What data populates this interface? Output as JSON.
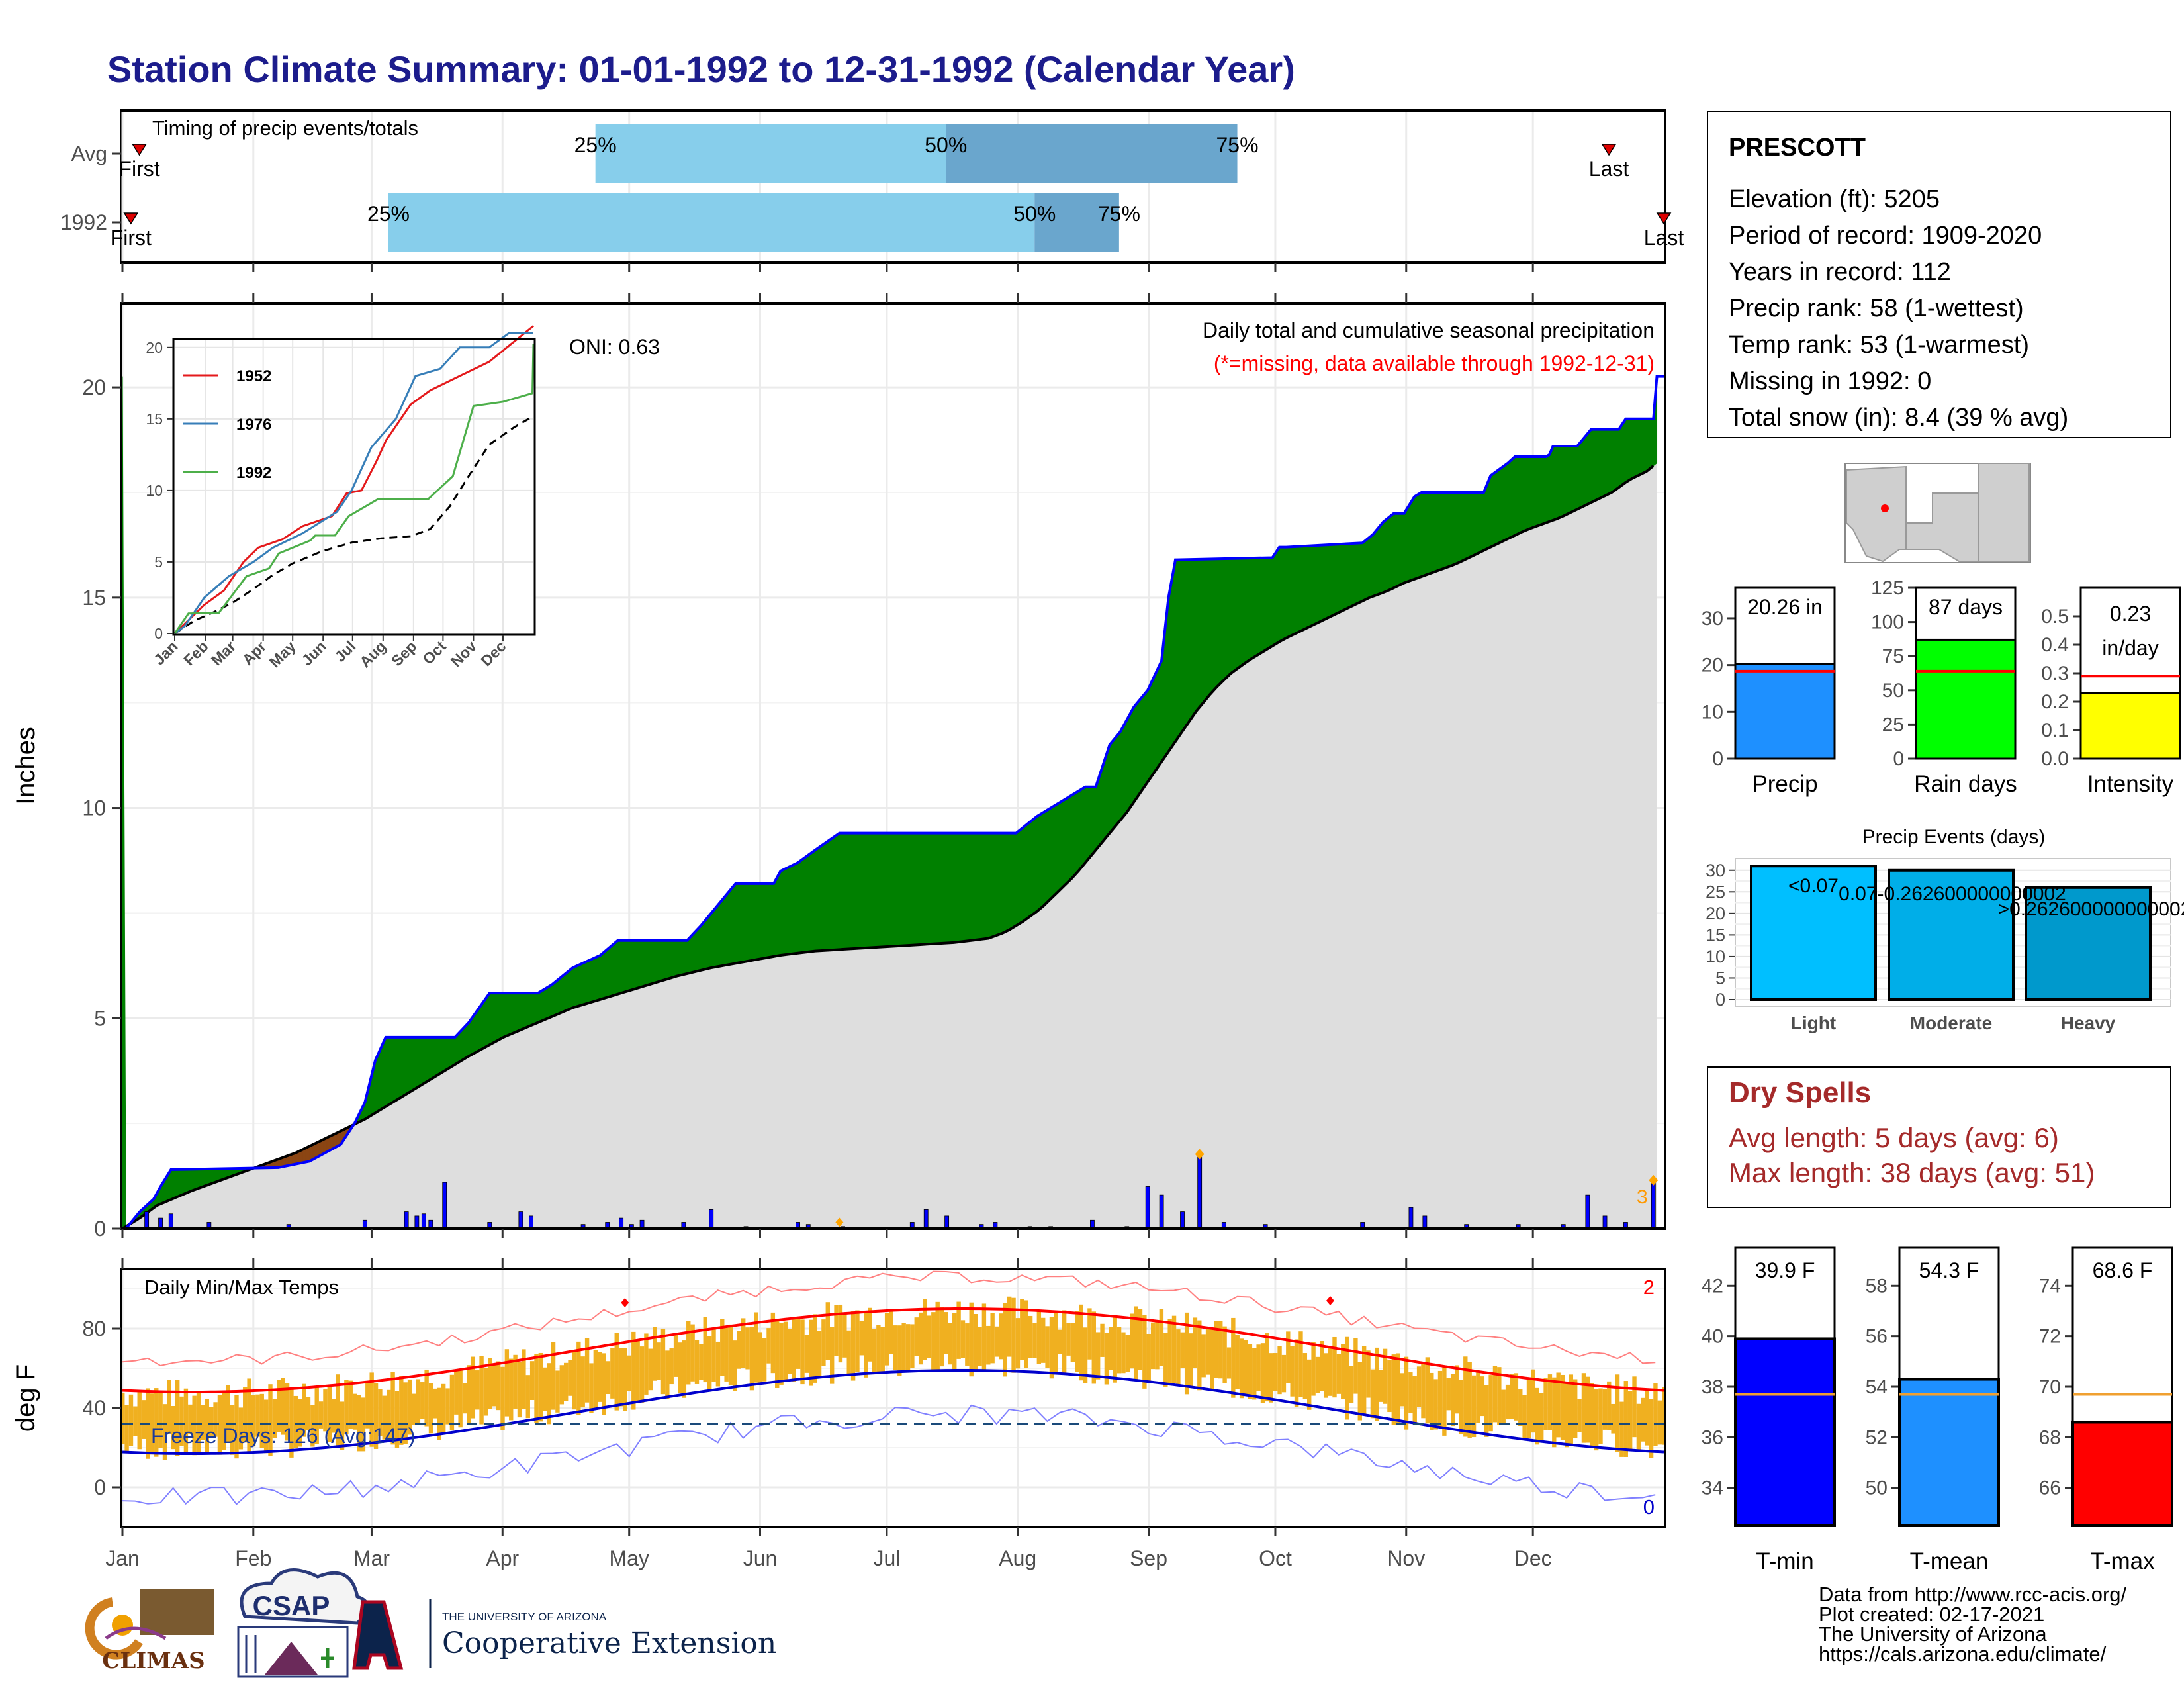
{
  "title": "Station Climate Summary: 01-01-1992 to 12-31-1992 (Calendar Year)",
  "timing_panel": {
    "label": "Timing of precip events/totals",
    "rows": [
      {
        "row_label": "Avg",
        "first_label": "First",
        "last_label": "Last",
        "p25_label": "25%",
        "p50_label": "50%",
        "p75_label": "75%",
        "first_day": 5,
        "p25_day": 113,
        "p50_day": 196,
        "p75_day": 265,
        "last_day": 353
      },
      {
        "row_label": "1992",
        "first_label": "First",
        "last_label": "Last",
        "p25_label": "25%",
        "p50_label": "50%",
        "p75_label": "75%",
        "first_day": 3,
        "p25_day": 64,
        "p50_day": 217,
        "p75_day": 237,
        "last_day": 366
      }
    ],
    "colors": {
      "light": "#87ceeb",
      "dark": "#6aa6cd",
      "marker": "#dd0000"
    }
  },
  "months": [
    "Jan",
    "Feb",
    "Mar",
    "Apr",
    "May",
    "Jun",
    "Jul",
    "Aug",
    "Sep",
    "Oct",
    "Nov",
    "Dec"
  ],
  "precip_panel": {
    "ylabel": "Inches",
    "yticks": [
      "0",
      "5",
      "10",
      "15",
      "20"
    ],
    "ylim": [
      0,
      22
    ],
    "oni": "ONI: 0.63",
    "caption": "Daily total and cumulative seasonal precipitation",
    "caption2": "(*=missing, data available through 1992-12-31)",
    "corner_num": "3",
    "colors": {
      "obs_line": "#0000ff",
      "above": "#008000",
      "below": "#8b4513",
      "avg_fill": "#dedede",
      "daily": "#0000ff"
    },
    "cumulative_1992": [
      [
        1,
        0
      ],
      [
        5,
        0.4
      ],
      [
        9,
        0.7
      ],
      [
        11,
        1.0
      ],
      [
        14,
        1.4
      ],
      [
        45,
        1.45
      ],
      [
        54,
        1.6
      ],
      [
        63,
        2.0
      ],
      [
        67,
        2.5
      ],
      [
        70,
        3.0
      ],
      [
        73,
        4.0
      ],
      [
        76,
        4.55
      ],
      [
        96,
        4.55
      ],
      [
        100,
        4.9
      ],
      [
        106,
        5.6
      ],
      [
        120,
        5.6
      ],
      [
        124,
        5.8
      ],
      [
        130,
        6.2
      ],
      [
        138,
        6.5
      ],
      [
        143,
        6.85
      ],
      [
        163,
        6.85
      ],
      [
        167,
        7.2
      ],
      [
        172,
        7.7
      ],
      [
        177,
        8.2
      ],
      [
        188,
        8.2
      ],
      [
        190,
        8.5
      ],
      [
        195,
        8.7
      ],
      [
        200,
        9.0
      ],
      [
        207,
        9.4
      ],
      [
        258,
        9.4
      ],
      [
        264,
        9.8
      ],
      [
        272,
        10.2
      ],
      [
        278,
        10.5
      ],
      [
        281,
        10.5
      ],
      [
        283,
        11.0
      ],
      [
        285,
        11.5
      ],
      [
        288,
        11.8
      ],
      [
        292,
        12.4
      ],
      [
        296,
        12.8
      ],
      [
        300,
        13.5
      ],
      [
        302,
        15.0
      ],
      [
        304,
        15.9
      ],
      [
        332,
        15.95
      ],
      [
        334,
        16.2
      ],
      [
        336,
        16.2
      ],
      [
        358,
        16.3
      ],
      [
        361,
        16.5
      ],
      [
        364,
        16.8
      ],
      [
        367,
        17.0
      ],
      [
        370,
        17.0
      ],
      [
        373,
        17.4
      ],
      [
        375,
        17.5
      ],
      [
        393,
        17.5
      ],
      [
        395,
        17.9
      ],
      [
        400,
        18.2
      ],
      [
        402,
        18.35
      ],
      [
        411,
        18.35
      ],
      [
        412,
        18.4
      ],
      [
        413,
        18.6
      ],
      [
        420,
        18.6
      ],
      [
        422,
        18.8
      ],
      [
        424,
        19.0
      ],
      [
        432,
        19.0
      ],
      [
        434,
        19.25
      ],
      [
        442,
        19.25
      ],
      [
        443,
        20.26
      ],
      [
        445,
        20.26
      ]
    ],
    "cumulative_avg": [
      [
        0,
        0
      ],
      [
        5,
        0.25
      ],
      [
        10,
        0.55
      ],
      [
        20,
        0.9
      ],
      [
        30,
        1.2
      ],
      [
        40,
        1.5
      ],
      [
        50,
        1.8
      ],
      [
        60,
        2.2
      ],
      [
        70,
        2.6
      ],
      [
        80,
        3.1
      ],
      [
        90,
        3.6
      ],
      [
        100,
        4.1
      ],
      [
        110,
        4.55
      ],
      [
        120,
        4.9
      ],
      [
        130,
        5.25
      ],
      [
        140,
        5.5
      ],
      [
        150,
        5.75
      ],
      [
        160,
        6.0
      ],
      [
        170,
        6.2
      ],
      [
        180,
        6.35
      ],
      [
        190,
        6.5
      ],
      [
        200,
        6.6
      ],
      [
        210,
        6.65
      ],
      [
        220,
        6.7
      ],
      [
        230,
        6.75
      ],
      [
        240,
        6.8
      ],
      [
        250,
        6.9
      ],
      [
        255,
        7.05
      ],
      [
        260,
        7.3
      ],
      [
        265,
        7.6
      ],
      [
        270,
        8.0
      ],
      [
        275,
        8.4
      ],
      [
        280,
        8.9
      ],
      [
        285,
        9.4
      ],
      [
        290,
        9.9
      ],
      [
        295,
        10.5
      ],
      [
        300,
        11.1
      ],
      [
        305,
        11.7
      ],
      [
        310,
        12.3
      ],
      [
        315,
        12.8
      ],
      [
        320,
        13.2
      ],
      [
        325,
        13.5
      ],
      [
        330,
        13.75
      ],
      [
        335,
        14.0
      ],
      [
        340,
        14.2
      ],
      [
        345,
        14.4
      ],
      [
        350,
        14.6
      ],
      [
        355,
        14.8
      ],
      [
        360,
        15.0
      ],
      [
        365,
        15.15
      ],
      [
        370,
        15.35
      ],
      [
        375,
        15.5
      ],
      [
        380,
        15.65
      ],
      [
        385,
        15.8
      ],
      [
        390,
        16.0
      ],
      [
        395,
        16.2
      ],
      [
        400,
        16.4
      ],
      [
        405,
        16.6
      ],
      [
        410,
        16.75
      ],
      [
        415,
        16.9
      ],
      [
        420,
        17.1
      ],
      [
        425,
        17.3
      ],
      [
        430,
        17.5
      ],
      [
        435,
        17.8
      ],
      [
        440,
        18.0
      ],
      [
        443,
        18.2
      ]
    ],
    "daily": [
      [
        7,
        0.4
      ],
      [
        11,
        0.25
      ],
      [
        14,
        0.35
      ],
      [
        25,
        0.15
      ],
      [
        48,
        0.1
      ],
      [
        70,
        0.2
      ],
      [
        82,
        0.4
      ],
      [
        85,
        0.3
      ],
      [
        87,
        0.35
      ],
      [
        89,
        0.2
      ],
      [
        93,
        1.1
      ],
      [
        106,
        0.15
      ],
      [
        115,
        0.4
      ],
      [
        118,
        0.3
      ],
      [
        133,
        0.1
      ],
      [
        140,
        0.15
      ],
      [
        144,
        0.25
      ],
      [
        147,
        0.1
      ],
      [
        150,
        0.2
      ],
      [
        162,
        0.15
      ],
      [
        170,
        0.45
      ],
      [
        180,
        0.05
      ],
      [
        195,
        0.15
      ],
      [
        198,
        0.1
      ],
      [
        208,
        0.05
      ],
      [
        228,
        0.15
      ],
      [
        232,
        0.45
      ],
      [
        238,
        0.3
      ],
      [
        248,
        0.1
      ],
      [
        252,
        0.15
      ],
      [
        262,
        0.05
      ],
      [
        268,
        0.05
      ],
      [
        280,
        0.2
      ],
      [
        290,
        0.05
      ],
      [
        296,
        1.0
      ],
      [
        300,
        0.8
      ],
      [
        306,
        0.4
      ],
      [
        311,
        1.7
      ],
      [
        318,
        0.15
      ],
      [
        330,
        0.1
      ],
      [
        358,
        0.15
      ],
      [
        372,
        0.5
      ],
      [
        376,
        0.3
      ],
      [
        388,
        0.1
      ],
      [
        403,
        0.1
      ],
      [
        416,
        0.1
      ],
      [
        423,
        0.8
      ],
      [
        428,
        0.3
      ],
      [
        434,
        0.15
      ],
      [
        442,
        1.1
      ]
    ]
  },
  "inset_panel": {
    "yticks": [
      "0",
      "5",
      "10",
      "15",
      "20"
    ],
    "months": [
      "Jan",
      "Feb",
      "Mar",
      "Apr",
      "May",
      "Jun",
      "Jul",
      "Aug",
      "Sep",
      "Oct",
      "Nov",
      "Dec"
    ],
    "series": [
      {
        "name": "1952",
        "color": "#e41a1c",
        "values": [
          [
            0,
            0
          ],
          [
            15,
            1
          ],
          [
            30,
            2
          ],
          [
            50,
            3
          ],
          [
            70,
            5
          ],
          [
            85,
            6
          ],
          [
            110,
            6.6
          ],
          [
            130,
            7.5
          ],
          [
            160,
            8.2
          ],
          [
            175,
            9.8
          ],
          [
            190,
            10
          ],
          [
            205,
            12
          ],
          [
            215,
            13.5
          ],
          [
            240,
            16
          ],
          [
            260,
            17
          ],
          [
            290,
            18
          ],
          [
            320,
            19
          ],
          [
            365,
            21.5
          ]
        ]
      },
      {
        "name": "1976",
        "color": "#377eb8",
        "values": [
          [
            0,
            0
          ],
          [
            10,
            0.5
          ],
          [
            30,
            2.5
          ],
          [
            55,
            4
          ],
          [
            80,
            5
          ],
          [
            100,
            6
          ],
          [
            130,
            7
          ],
          [
            165,
            8.5
          ],
          [
            180,
            10
          ],
          [
            200,
            13
          ],
          [
            225,
            15
          ],
          [
            245,
            18
          ],
          [
            270,
            18.5
          ],
          [
            290,
            20
          ],
          [
            320,
            20
          ],
          [
            340,
            21
          ],
          [
            365,
            21
          ]
        ]
      },
      {
        "name": "1992",
        "color": "#4daf4a",
        "values": [
          [
            0,
            0
          ],
          [
            14,
            1.4
          ],
          [
            45,
            1.45
          ],
          [
            73,
            4
          ],
          [
            96,
            4.55
          ],
          [
            106,
            5.6
          ],
          [
            138,
            6.5
          ],
          [
            143,
            6.85
          ],
          [
            163,
            6.85
          ],
          [
            177,
            8.2
          ],
          [
            207,
            9.4
          ],
          [
            258,
            9.4
          ],
          [
            283,
            11
          ],
          [
            304,
            15.9
          ],
          [
            334,
            16.2
          ],
          [
            364,
            16.8
          ],
          [
            365,
            20.26
          ]
        ]
      }
    ],
    "avg": [
      [
        0,
        0
      ],
      [
        20,
        0.9
      ],
      [
        40,
        1.5
      ],
      [
        60,
        2.2
      ],
      [
        80,
        3.1
      ],
      [
        100,
        4.1
      ],
      [
        120,
        4.9
      ],
      [
        150,
        5.75
      ],
      [
        180,
        6.35
      ],
      [
        210,
        6.65
      ],
      [
        240,
        6.8
      ],
      [
        260,
        7.3
      ],
      [
        280,
        8.9
      ],
      [
        300,
        11.1
      ],
      [
        320,
        13.2
      ],
      [
        345,
        14.4
      ],
      [
        365,
        15.2
      ]
    ]
  },
  "temp_panel": {
    "ylabel": "deg F",
    "label": "Daily Min/Max Temps",
    "freeze_label": "Freeze Days: 126 (Avg:147)",
    "count_high": "2",
    "count_low": "0",
    "yticks": [
      "0",
      "40",
      "80"
    ],
    "ylim": [
      -20,
      110
    ],
    "freeze_line": 32,
    "colors": {
      "bar": "#f0b020",
      "max_norm": "#ff0000",
      "min_norm": "#0000cc",
      "extreme_max": "#ff8080",
      "extreme_min": "#8080ff",
      "freeze": "#1a4a7a"
    }
  },
  "station_box": {
    "name": "PRESCOTT",
    "lines": [
      "Elevation (ft): 5205",
      "Period of record: 1909-2020",
      "Years in record: 112",
      "Precip rank: 58 (1-wettest)",
      "Temp rank: 53 (1-warmest)",
      "Missing in 1992: 0",
      "Total snow (in): 8.4 (39 % avg)"
    ]
  },
  "precip_stats": [
    {
      "label": "Precip",
      "value_label": "20.26 in",
      "value": 20.26,
      "avg": 18.7,
      "max": 36.5,
      "yticks": [
        "0",
        "10",
        "20",
        "30"
      ],
      "tickvals": [
        0,
        10,
        20,
        30
      ],
      "color": "#1e90ff"
    },
    {
      "label": "Rain days",
      "value_label": "87 days",
      "value": 87,
      "avg": 64,
      "max": 125,
      "yticks": [
        "0",
        "25",
        "50",
        "75",
        "100",
        "125"
      ],
      "tickvals": [
        0,
        25,
        50,
        75,
        100,
        125
      ],
      "color": "#00ff00"
    },
    {
      "label": "Intensity",
      "value_label1": "0.23",
      "value_label2": "in/day",
      "value": 0.23,
      "avg": 0.29,
      "max": 0.6,
      "yticks": [
        "0.0",
        "0.1",
        "0.2",
        "0.3",
        "0.4",
        "0.5"
      ],
      "tickvals": [
        0,
        0.1,
        0.2,
        0.3,
        0.4,
        0.5
      ],
      "color": "#ffff00"
    }
  ],
  "events_panel": {
    "title": "Precip Events (days)",
    "categories": [
      "Light",
      "Moderate",
      "Heavy"
    ],
    "values": [
      31,
      30,
      26
    ],
    "bar_labels": [
      "<0.07",
      "0.07-0.262600000000002",
      ">0.262600000000002"
    ],
    "yticks": [
      "0",
      "5",
      "10",
      "15",
      "20",
      "25",
      "30"
    ],
    "colors": [
      "#00bfff",
      "#00aee8",
      "#0099cc"
    ]
  },
  "dry_spells": {
    "title": "Dry Spells",
    "avg_line": "Avg length: 5 days (avg: 6)",
    "max_line": "Max length: 38 days (avg: 51)",
    "color": "#a52a2a"
  },
  "temp_stats": [
    {
      "label": "T-min",
      "value_label": "39.9 F",
      "value": 39.9,
      "avg": 37.7,
      "min": 32.5,
      "max": 43.5,
      "yticks": [
        "34",
        "36",
        "38",
        "40",
        "42"
      ],
      "tickvals": [
        34,
        36,
        38,
        40,
        42
      ],
      "color": "#0000ff"
    },
    {
      "label": "T-mean",
      "value_label": "54.3 F",
      "value": 54.3,
      "avg": 53.7,
      "min": 48.5,
      "max": 59.5,
      "yticks": [
        "50",
        "52",
        "54",
        "56",
        "58"
      ],
      "tickvals": [
        50,
        52,
        54,
        56,
        58
      ],
      "color": "#1e90ff"
    },
    {
      "label": "T-max",
      "value_label": "68.6 F",
      "value": 68.6,
      "avg": 69.7,
      "min": 64.5,
      "max": 75.5,
      "yticks": [
        "66",
        "68",
        "70",
        "72",
        "74"
      ],
      "tickvals": [
        66,
        68,
        70,
        72,
        74
      ],
      "color": "#ff0000"
    }
  ],
  "logos": {
    "climas": "CLIMAS",
    "csap": "CSAP",
    "ua_top": "THE UNIVERSITY OF ARIZONA",
    "ua_main": "Cooperative Extension"
  },
  "credits": [
    "Data from http://www.rcc-acis.org/",
    "Plot created: 02-17-2021",
    "The University of Arizona",
    "https://cals.arizona.edu/climate/"
  ]
}
